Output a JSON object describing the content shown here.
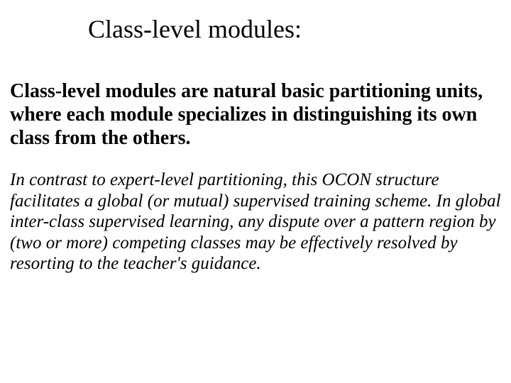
{
  "slide": {
    "title": "Class-level modules:",
    "paragraph1": "Class-level modules are  natural basic partitioning units, where each module specializes in distinguishing its own class from the others.",
    "paragraph2": "In contrast to expert-level partitioning, this OCON structure facilitates a global (or mutual) supervised training scheme. In global inter-class supervised learning, any dispute over a pattern region by (two or more) competing classes may be effectively resolved by resorting to the teacher's guidance."
  },
  "colors": {
    "background": "#ffffff",
    "text": "#000000"
  },
  "typography": {
    "font_family": "Times New Roman",
    "title_fontsize": 36,
    "body_bold_fontsize": 28,
    "body_italic_fontsize": 25
  }
}
